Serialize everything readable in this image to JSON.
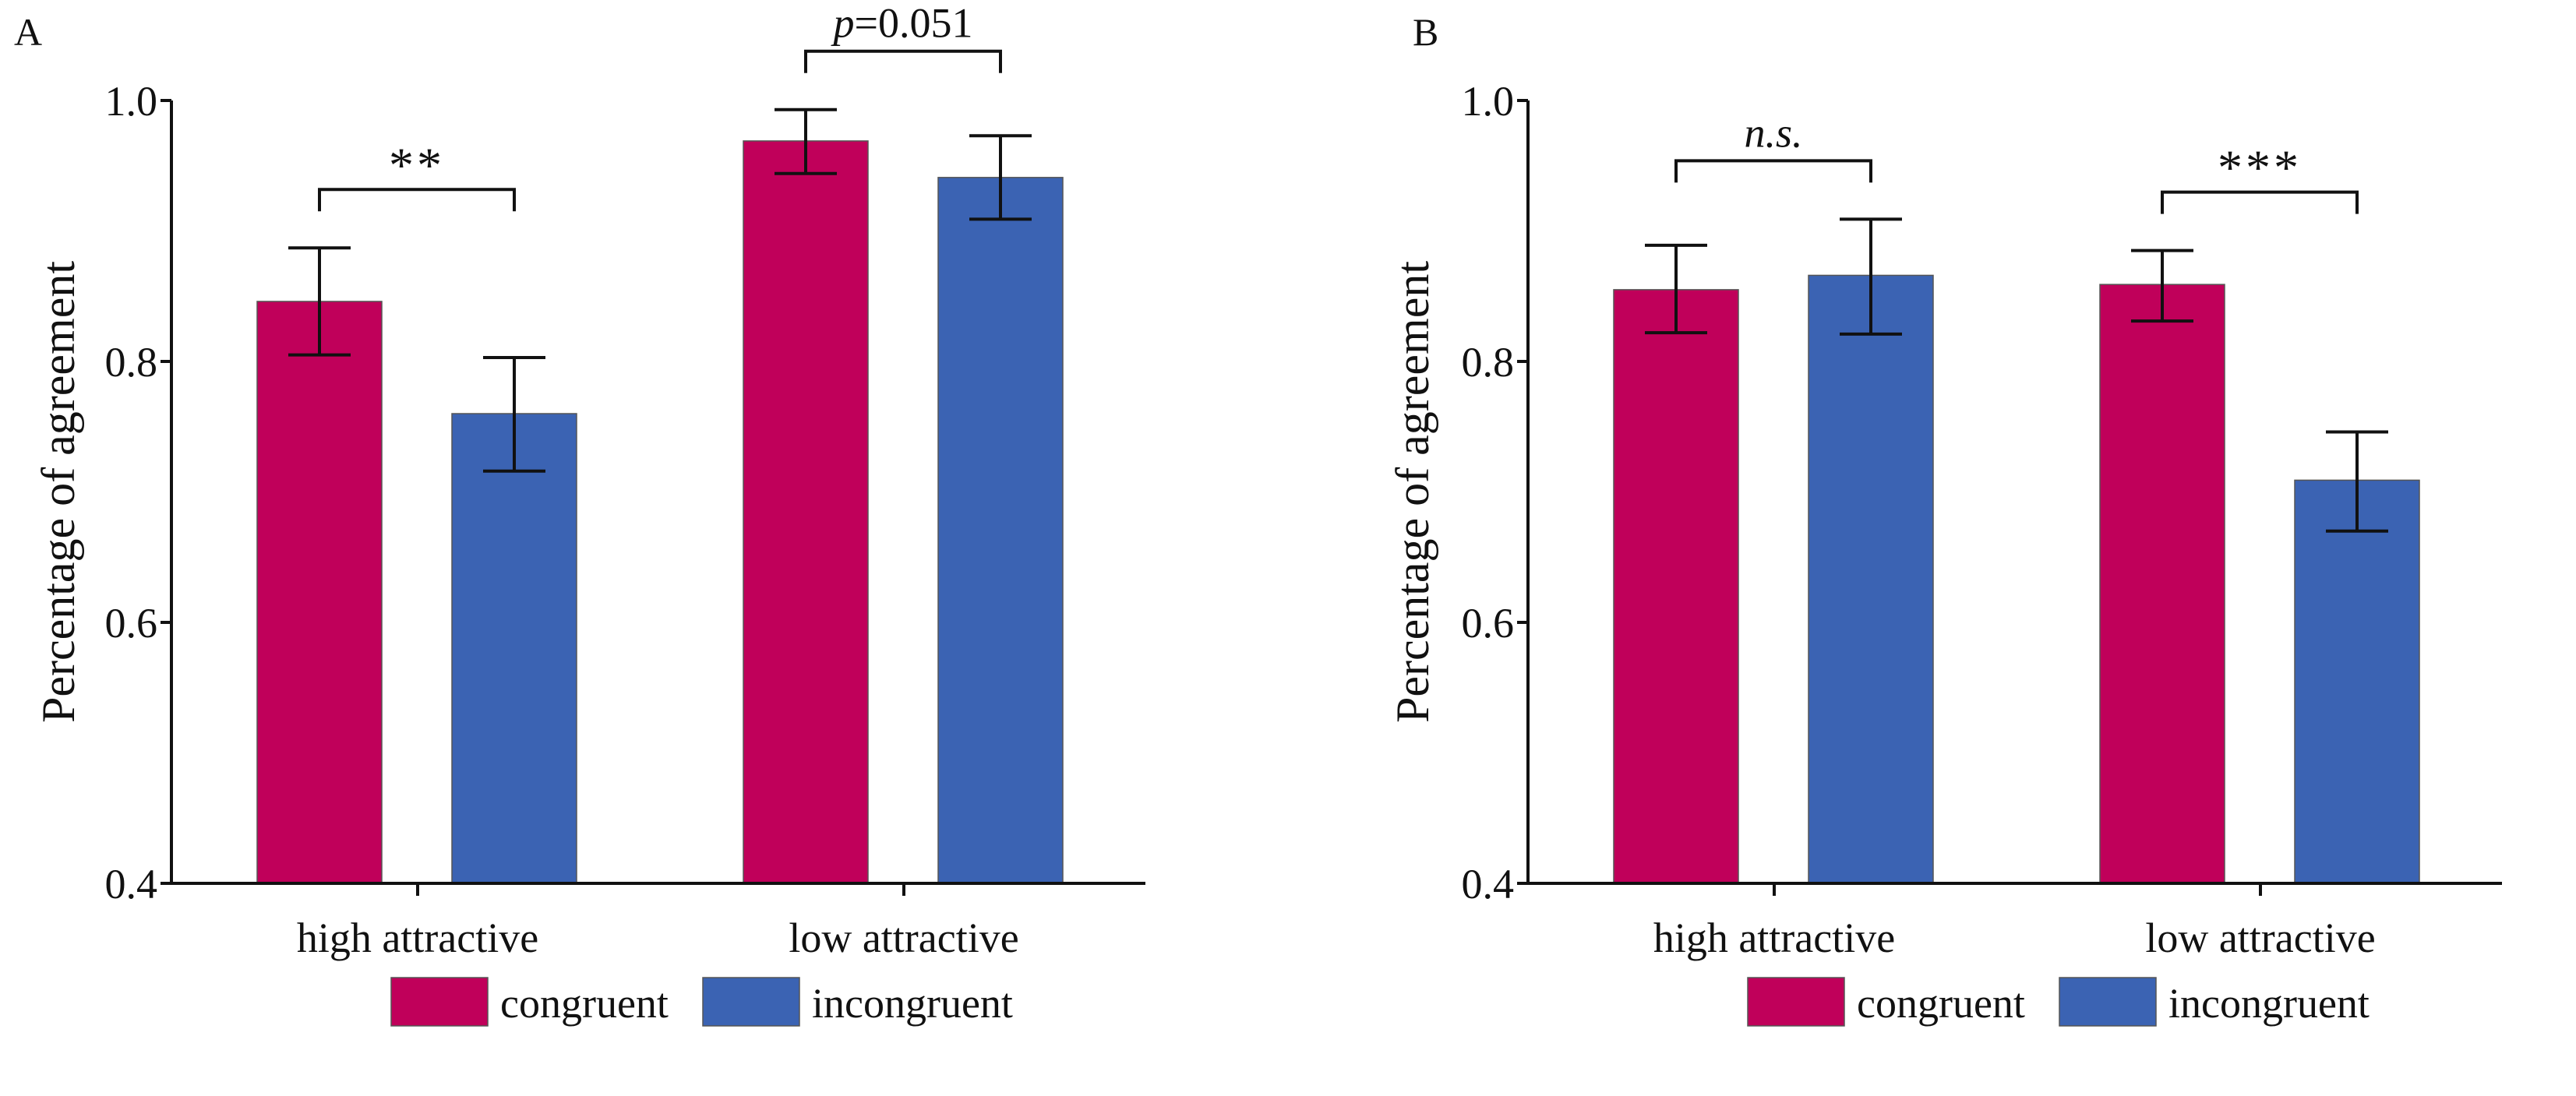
{
  "colors": {
    "congruent": "#C0005A",
    "incongruent": "#3B63B3",
    "axis": "#111111"
  },
  "chart_data": [
    {
      "type": "bar",
      "panel_label": "A",
      "ylabel": "Percentage of agreement",
      "ylim": [
        0.4,
        1.0
      ],
      "yticks": [
        "0.4",
        "0.6",
        "0.8",
        "1.0"
      ],
      "categories": [
        "high attractive",
        "low attractive"
      ],
      "series": [
        {
          "name": "congruent",
          "values": [
            0.846,
            0.969
          ],
          "err_low": [
            0.805,
            0.944
          ],
          "err_high": [
            0.887,
            0.993
          ]
        },
        {
          "name": "incongruent",
          "values": [
            0.76,
            0.941
          ],
          "err_low": [
            0.716,
            0.909
          ],
          "err_high": [
            0.803,
            0.973
          ]
        }
      ],
      "annotations": [
        {
          "category": 0,
          "text": "**",
          "italic": false
        },
        {
          "category": 1,
          "text_italic": "p",
          "text": "=0.051",
          "italic": true
        }
      ],
      "legend": {
        "placement": "bottom",
        "entries": [
          "congruent",
          "incongruent"
        ]
      }
    },
    {
      "type": "bar",
      "panel_label": "B",
      "ylabel": "Percentage of agreement",
      "ylim": [
        0.4,
        1.0
      ],
      "yticks": [
        "0.4",
        "0.6",
        "0.8",
        "1.0"
      ],
      "categories": [
        "high attractive",
        "low attractive"
      ],
      "series": [
        {
          "name": "congruent",
          "values": [
            0.855,
            0.859
          ],
          "err_low": [
            0.822,
            0.831
          ],
          "err_high": [
            0.889,
            0.885
          ]
        },
        {
          "name": "incongruent",
          "values": [
            0.866,
            0.709
          ],
          "err_low": [
            0.821,
            0.67
          ],
          "err_high": [
            0.909,
            0.746
          ]
        }
      ],
      "annotations": [
        {
          "category": 0,
          "text": "n.s.",
          "italic": true
        },
        {
          "category": 1,
          "text": "***",
          "italic": false
        }
      ],
      "legend": {
        "placement": "bottom",
        "entries": [
          "congruent",
          "incongruent"
        ]
      }
    }
  ]
}
